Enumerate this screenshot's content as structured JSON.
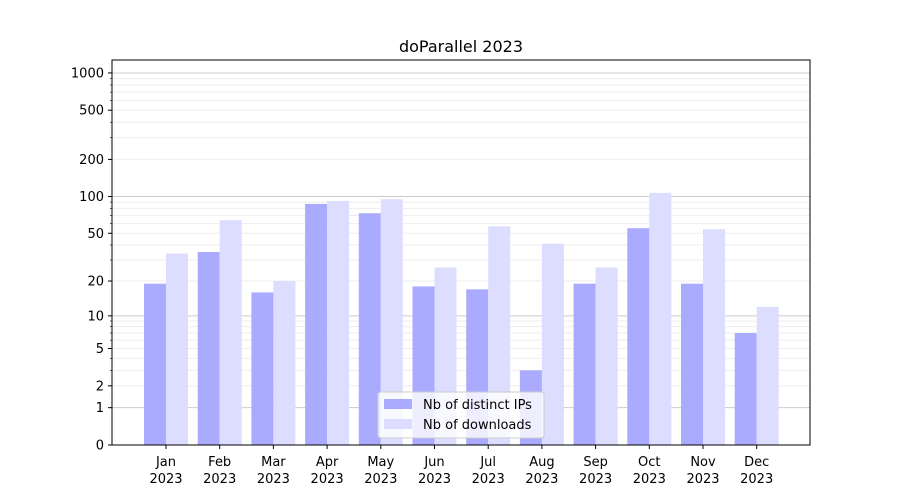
{
  "chart_data": {
    "type": "bar",
    "title": "doParallel 2023",
    "xlabel": "",
    "ylabel": "",
    "yscale": "symlog (log10(1+y))",
    "ylim": [
      0,
      1270
    ],
    "yticks": [
      0,
      1,
      2,
      5,
      10,
      20,
      50,
      100,
      200,
      500,
      1000
    ],
    "grid": true,
    "legend_position": "bottom-center",
    "categories": [
      "Jan\n2023",
      "Feb\n2023",
      "Mar\n2023",
      "Apr\n2023",
      "May\n2023",
      "Jun\n2023",
      "Jul\n2023",
      "Aug\n2023",
      "Sep\n2023",
      "Oct\n2023",
      "Nov\n2023",
      "Dec\n2023"
    ],
    "series": [
      {
        "name": "Nb of distinct IPs",
        "color": "#aaaaff",
        "values": [
          19,
          35,
          16,
          87,
          73,
          18,
          17,
          3,
          19,
          55,
          19,
          7
        ]
      },
      {
        "name": "Nb of downloads",
        "color": "#ddddff",
        "values": [
          34,
          64,
          20,
          92,
          95,
          26,
          57,
          41,
          26,
          107,
          54,
          12
        ]
      }
    ]
  }
}
